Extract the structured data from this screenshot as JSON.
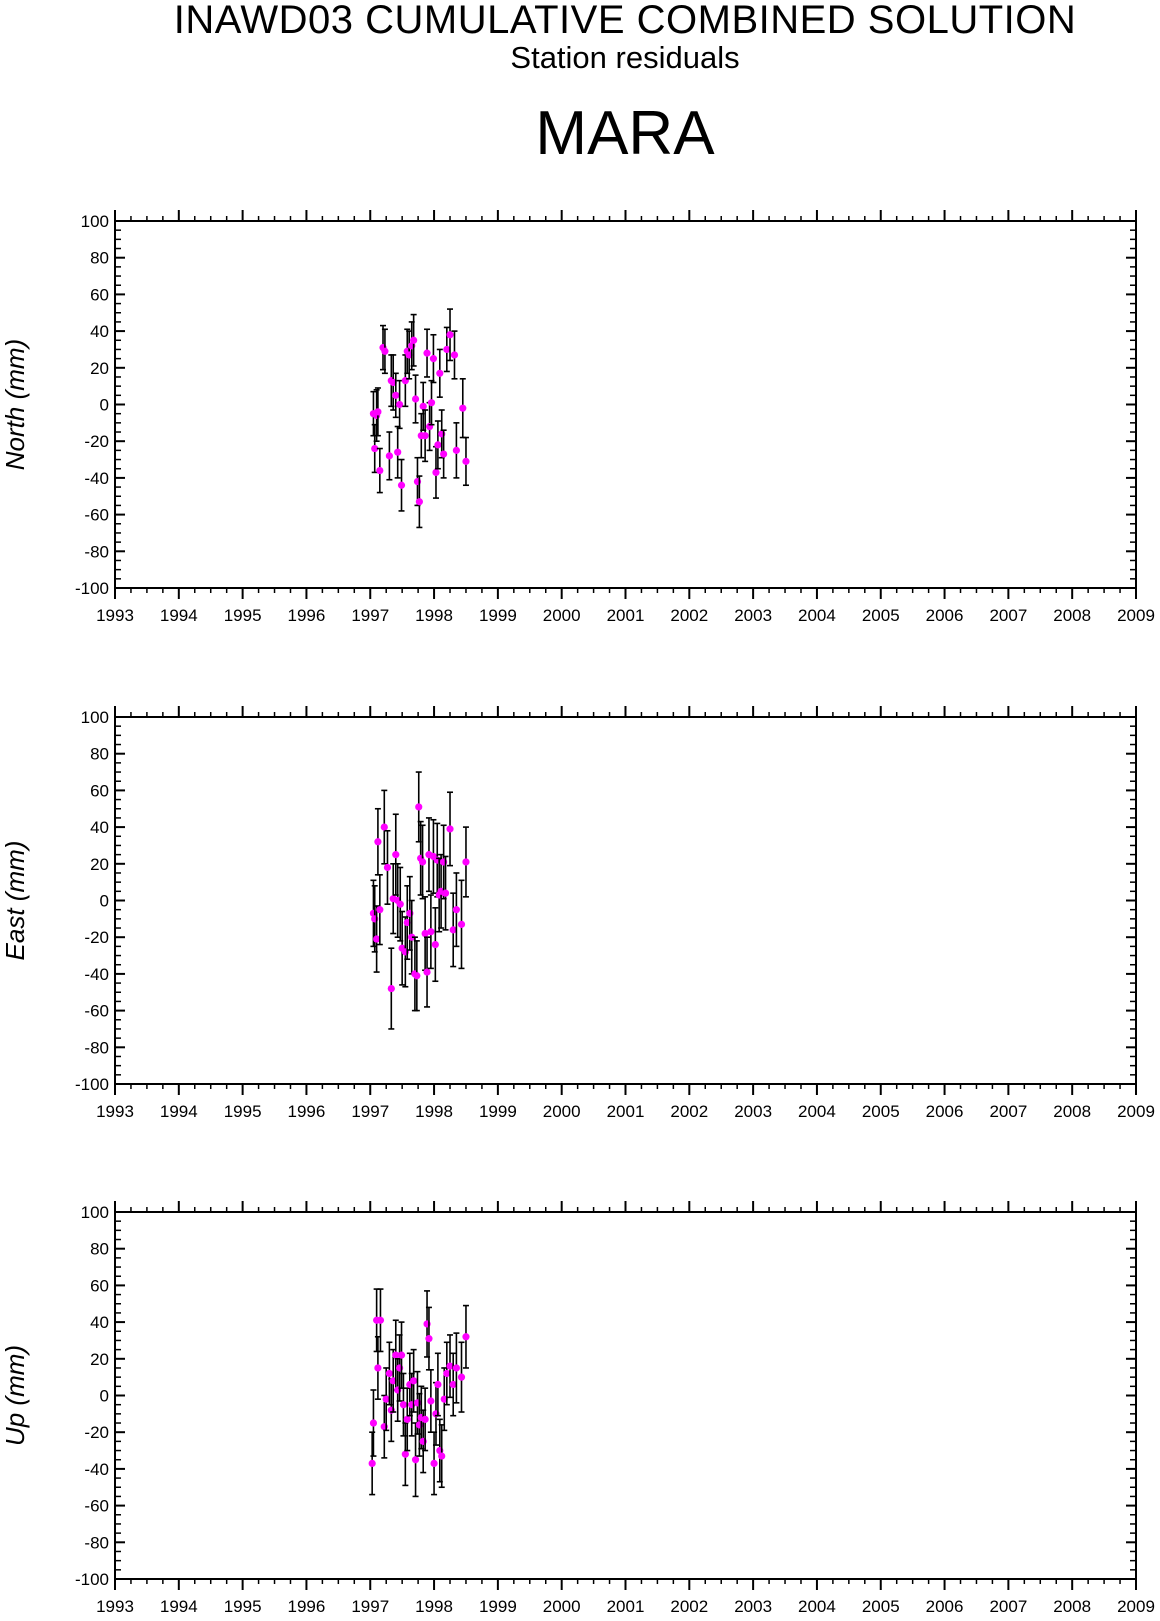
{
  "header": {
    "title": "INAWD03 CUMULATIVE COMBINED SOLUTION",
    "subtitle": "Station residuals",
    "station": "MARA"
  },
  "colors": {
    "point": "#ff00ff",
    "errorbar": "#000000",
    "axis": "#000000"
  },
  "chart_data": [
    {
      "type": "scatter",
      "panel": "north",
      "ylabel": "North (mm)",
      "xlim": [
        1993,
        2009
      ],
      "ylim": [
        -100,
        100
      ],
      "x_ticks": [
        "1993",
        "1994",
        "1995",
        "1996",
        "1997",
        "1998",
        "1999",
        "2000",
        "2001",
        "2002",
        "2003",
        "2004",
        "2005",
        "2006",
        "2007",
        "2008",
        "2009"
      ],
      "y_ticks": [
        "100",
        "80",
        "60",
        "40",
        "20",
        "0",
        "-20",
        "-40",
        "-60",
        "-80",
        "-100"
      ],
      "grid": false,
      "series": [
        {
          "marker": "dot",
          "points": [
            {
              "x": 1997.05,
              "y": -5,
              "err": 12
            },
            {
              "x": 1997.07,
              "y": -24,
              "err": 13
            },
            {
              "x": 1997.1,
              "y": -6,
              "err": 14
            },
            {
              "x": 1997.12,
              "y": -4,
              "err": 13
            },
            {
              "x": 1997.15,
              "y": -36,
              "err": 12
            },
            {
              "x": 1997.2,
              "y": 31,
              "err": 12
            },
            {
              "x": 1997.23,
              "y": 29,
              "err": 12
            },
            {
              "x": 1997.3,
              "y": -28,
              "err": 13
            },
            {
              "x": 1997.33,
              "y": 13,
              "err": 14
            },
            {
              "x": 1997.36,
              "y": 12,
              "err": 15
            },
            {
              "x": 1997.4,
              "y": 5,
              "err": 12
            },
            {
              "x": 1997.43,
              "y": -26,
              "err": 14
            },
            {
              "x": 1997.46,
              "y": 0,
              "err": 13
            },
            {
              "x": 1997.49,
              "y": -44,
              "err": 14
            },
            {
              "x": 1997.55,
              "y": 13,
              "err": 14
            },
            {
              "x": 1997.58,
              "y": 29,
              "err": 12
            },
            {
              "x": 1997.61,
              "y": 27,
              "err": 13
            },
            {
              "x": 1997.65,
              "y": 32,
              "err": 13
            },
            {
              "x": 1997.68,
              "y": 35,
              "err": 14
            },
            {
              "x": 1997.71,
              "y": 3,
              "err": 13
            },
            {
              "x": 1997.74,
              "y": -42,
              "err": 13
            },
            {
              "x": 1997.77,
              "y": -53,
              "err": 14
            },
            {
              "x": 1997.8,
              "y": -17,
              "err": 12
            },
            {
              "x": 1997.83,
              "y": -1,
              "err": 13
            },
            {
              "x": 1997.86,
              "y": -17,
              "err": 14
            },
            {
              "x": 1997.89,
              "y": 28,
              "err": 13
            },
            {
              "x": 1997.93,
              "y": -12,
              "err": 13
            },
            {
              "x": 1997.96,
              "y": 1,
              "err": 12
            },
            {
              "x": 1997.99,
              "y": 25,
              "err": 13
            },
            {
              "x": 1998.03,
              "y": -37,
              "err": 14
            },
            {
              "x": 1998.06,
              "y": -22,
              "err": 13
            },
            {
              "x": 1998.09,
              "y": 17,
              "err": 13
            },
            {
              "x": 1998.12,
              "y": -16,
              "err": 13
            },
            {
              "x": 1998.15,
              "y": -27,
              "err": 13
            },
            {
              "x": 1998.2,
              "y": 30,
              "err": 12
            },
            {
              "x": 1998.25,
              "y": 38,
              "err": 14
            },
            {
              "x": 1998.32,
              "y": 27,
              "err": 13
            },
            {
              "x": 1998.35,
              "y": -25,
              "err": 15
            },
            {
              "x": 1998.45,
              "y": -2,
              "err": 16
            },
            {
              "x": 1998.5,
              "y": -31,
              "err": 13
            }
          ]
        }
      ]
    },
    {
      "type": "scatter",
      "panel": "east",
      "ylabel": "East (mm)",
      "xlim": [
        1993,
        2009
      ],
      "ylim": [
        -100,
        100
      ],
      "x_ticks": [
        "1993",
        "1994",
        "1995",
        "1996",
        "1997",
        "1998",
        "1999",
        "2000",
        "2001",
        "2002",
        "2003",
        "2004",
        "2005",
        "2006",
        "2007",
        "2008",
        "2009"
      ],
      "y_ticks": [
        "100",
        "80",
        "60",
        "40",
        "20",
        "0",
        "-20",
        "-40",
        "-60",
        "-80",
        "-100"
      ],
      "grid": false,
      "series": [
        {
          "marker": "dot",
          "points": [
            {
              "x": 1997.05,
              "y": -7,
              "err": 18
            },
            {
              "x": 1997.07,
              "y": -10,
              "err": 18
            },
            {
              "x": 1997.1,
              "y": -21,
              "err": 18
            },
            {
              "x": 1997.12,
              "y": 32,
              "err": 18
            },
            {
              "x": 1997.15,
              "y": -5,
              "err": 19
            },
            {
              "x": 1997.22,
              "y": 40,
              "err": 20
            },
            {
              "x": 1997.27,
              "y": 18,
              "err": 20
            },
            {
              "x": 1997.33,
              "y": -48,
              "err": 22
            },
            {
              "x": 1997.36,
              "y": 1,
              "err": 19
            },
            {
              "x": 1997.4,
              "y": 25,
              "err": 22
            },
            {
              "x": 1997.43,
              "y": 0,
              "err": 20
            },
            {
              "x": 1997.47,
              "y": -2,
              "err": 20
            },
            {
              "x": 1997.5,
              "y": -26,
              "err": 20
            },
            {
              "x": 1997.55,
              "y": -28,
              "err": 19
            },
            {
              "x": 1997.58,
              "y": -12,
              "err": 20
            },
            {
              "x": 1997.62,
              "y": -7,
              "err": 20
            },
            {
              "x": 1997.65,
              "y": -20,
              "err": 20
            },
            {
              "x": 1997.7,
              "y": -40,
              "err": 20
            },
            {
              "x": 1997.73,
              "y": -41,
              "err": 19
            },
            {
              "x": 1997.76,
              "y": 51,
              "err": 19
            },
            {
              "x": 1997.79,
              "y": 23,
              "err": 20
            },
            {
              "x": 1997.82,
              "y": 21,
              "err": 20
            },
            {
              "x": 1997.86,
              "y": -18,
              "err": 20
            },
            {
              "x": 1997.89,
              "y": -39,
              "err": 19
            },
            {
              "x": 1997.92,
              "y": 25,
              "err": 20
            },
            {
              "x": 1997.95,
              "y": -17,
              "err": 20
            },
            {
              "x": 1997.99,
              "y": 24,
              "err": 20
            },
            {
              "x": 1998.02,
              "y": -24,
              "err": 20
            },
            {
              "x": 1998.05,
              "y": 22,
              "err": 20
            },
            {
              "x": 1998.08,
              "y": 3,
              "err": 20
            },
            {
              "x": 1998.11,
              "y": 5,
              "err": 20
            },
            {
              "x": 1998.15,
              "y": 21,
              "err": 20
            },
            {
              "x": 1998.18,
              "y": 4,
              "err": 20
            },
            {
              "x": 1998.25,
              "y": 39,
              "err": 20
            },
            {
              "x": 1998.3,
              "y": -16,
              "err": 20
            },
            {
              "x": 1998.35,
              "y": -5,
              "err": 20
            },
            {
              "x": 1998.43,
              "y": -13,
              "err": 24
            },
            {
              "x": 1998.5,
              "y": 21,
              "err": 19
            }
          ]
        }
      ]
    },
    {
      "type": "scatter",
      "panel": "up",
      "ylabel": "Up (mm)",
      "xlim": [
        1993,
        2009
      ],
      "ylim": [
        -100,
        100
      ],
      "x_ticks": [
        "1993",
        "1994",
        "1995",
        "1996",
        "1997",
        "1998",
        "1999",
        "2000",
        "2001",
        "2002",
        "2003",
        "2004",
        "2005",
        "2006",
        "2007",
        "2008",
        "2009"
      ],
      "y_ticks": [
        "100",
        "80",
        "60",
        "40",
        "20",
        "0",
        "-20",
        "-40",
        "-60",
        "-80",
        "-100"
      ],
      "grid": false,
      "series": [
        {
          "marker": "dot",
          "points": [
            {
              "x": 1997.03,
              "y": -37,
              "err": 17
            },
            {
              "x": 1997.05,
              "y": -15,
              "err": 18
            },
            {
              "x": 1997.1,
              "y": 41,
              "err": 17
            },
            {
              "x": 1997.12,
              "y": 15,
              "err": 17
            },
            {
              "x": 1997.16,
              "y": 41,
              "err": 17
            },
            {
              "x": 1997.22,
              "y": -17,
              "err": 17
            },
            {
              "x": 1997.25,
              "y": -2,
              "err": 17
            },
            {
              "x": 1997.3,
              "y": 12,
              "err": 17
            },
            {
              "x": 1997.33,
              "y": -8,
              "err": 17
            },
            {
              "x": 1997.36,
              "y": 8,
              "err": 17
            },
            {
              "x": 1997.4,
              "y": 22,
              "err": 19
            },
            {
              "x": 1997.43,
              "y": 3,
              "err": 17
            },
            {
              "x": 1997.46,
              "y": 15,
              "err": 18
            },
            {
              "x": 1997.49,
              "y": 22,
              "err": 18
            },
            {
              "x": 1997.52,
              "y": -5,
              "err": 17
            },
            {
              "x": 1997.55,
              "y": -32,
              "err": 17
            },
            {
              "x": 1997.58,
              "y": -13,
              "err": 17
            },
            {
              "x": 1997.62,
              "y": 6,
              "err": 17
            },
            {
              "x": 1997.65,
              "y": -5,
              "err": 17
            },
            {
              "x": 1997.68,
              "y": 8,
              "err": 17
            },
            {
              "x": 1997.71,
              "y": -35,
              "err": 20
            },
            {
              "x": 1997.74,
              "y": -4,
              "err": 17
            },
            {
              "x": 1997.77,
              "y": -16,
              "err": 17
            },
            {
              "x": 1997.8,
              "y": -12,
              "err": 17
            },
            {
              "x": 1997.83,
              "y": -25,
              "err": 17
            },
            {
              "x": 1997.86,
              "y": -13,
              "err": 17
            },
            {
              "x": 1997.89,
              "y": 39,
              "err": 18
            },
            {
              "x": 1997.92,
              "y": 31,
              "err": 17
            },
            {
              "x": 1997.95,
              "y": -3,
              "err": 17
            },
            {
              "x": 1998.0,
              "y": -37,
              "err": 17
            },
            {
              "x": 1998.03,
              "y": -10,
              "err": 17
            },
            {
              "x": 1998.06,
              "y": 6,
              "err": 17
            },
            {
              "x": 1998.09,
              "y": -30,
              "err": 17
            },
            {
              "x": 1998.12,
              "y": -33,
              "err": 17
            },
            {
              "x": 1998.16,
              "y": -2,
              "err": 17
            },
            {
              "x": 1998.2,
              "y": 12,
              "err": 17
            },
            {
              "x": 1998.25,
              "y": 16,
              "err": 17
            },
            {
              "x": 1998.3,
              "y": 6,
              "err": 17
            },
            {
              "x": 1998.35,
              "y": 15,
              "err": 19
            },
            {
              "x": 1998.43,
              "y": 10,
              "err": 19
            },
            {
              "x": 1998.5,
              "y": 32,
              "err": 17
            }
          ]
        }
      ]
    }
  ]
}
